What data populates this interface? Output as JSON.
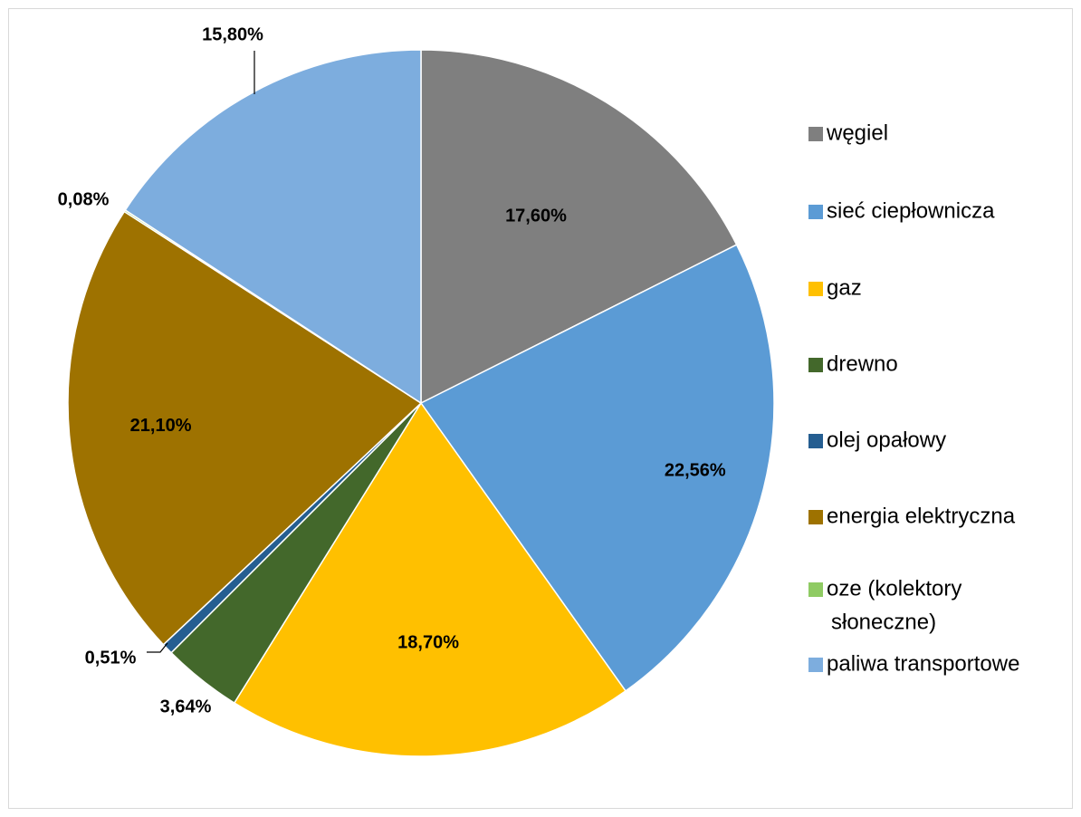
{
  "chart_data": {
    "type": "pie",
    "categories": [
      "węgiel",
      "sieć ciepłownicza",
      "gaz",
      "drewno",
      "olej opałowy",
      "energia elektryczna",
      "oze (kolektory słoneczne)",
      "paliwa transportowe"
    ],
    "legend_lines": [
      [
        "węgiel"
      ],
      [
        "sieć ciepłownicza"
      ],
      [
        "gaz"
      ],
      [
        "drewno"
      ],
      [
        "olej opałowy"
      ],
      [
        "energia elektryczna"
      ],
      [
        "oze (kolektory",
        "słoneczne)"
      ],
      [
        "paliwa transportowe"
      ]
    ],
    "values": [
      17.6,
      22.56,
      18.7,
      3.64,
      0.51,
      21.1,
      0.08,
      15.8
    ],
    "data_labels": [
      "17,60%",
      "22,56%",
      "18,70%",
      "3,64%",
      "0,51%",
      "21,10%",
      "0,08%",
      "15,80%"
    ],
    "colors": [
      "#7f7f7f",
      "#5b9bd5",
      "#ffc000",
      "#43682b",
      "#255e91",
      "#9e7200",
      "#8fcb63",
      "#7dadde"
    ],
    "start_angle": "12 o'clock",
    "direction": "clockwise",
    "legend_position": "right"
  }
}
